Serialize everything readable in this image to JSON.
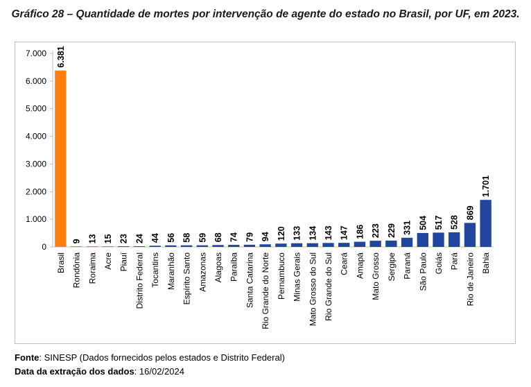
{
  "title": "Gráfico 28 – Quantidade de mortes por intervenção de agente do estado no Brasil, por UF, em 2023.",
  "footer": {
    "source_label": "Fonte",
    "source_text": ": SINESP (Dados fornecidos pelos estados e Distrito Federal)",
    "date_label": "Data da extração dos dados",
    "date_text": ": 16/02/2024"
  },
  "colors": {
    "highlight": "#FF7F0E",
    "bars": "#2246A0",
    "axis": "#bfbfbf"
  },
  "chart_data": {
    "type": "bar",
    "categories": [
      "Brasil",
      "Rondônia",
      "Roraima",
      "Acre",
      "Piauí",
      "Distrito Federal",
      "Tocantins",
      "Maranhão",
      "Espírito Santo",
      "Amazonas",
      "Alagoas",
      "Paraíba",
      "Santa Catarina",
      "Rio Grande do Norte",
      "Pernambuco",
      "Minas Gerais",
      "Mato Grosso do Sul",
      "Rio Grande do Sul",
      "Ceará",
      "Amapá",
      "Mato Grosso",
      "Sergipe",
      "Paraná",
      "São Paulo",
      "Goiás",
      "Pará",
      "Rio de Janeiro",
      "Bahia"
    ],
    "values": [
      6381,
      9,
      13,
      15,
      23,
      24,
      44,
      56,
      58,
      59,
      68,
      74,
      79,
      94,
      120,
      133,
      134,
      143,
      147,
      186,
      223,
      229,
      331,
      504,
      517,
      528,
      869,
      1701
    ],
    "value_labels": [
      "6.381",
      "9",
      "13",
      "15",
      "23",
      "24",
      "44",
      "56",
      "58",
      "59",
      "68",
      "74",
      "79",
      "94",
      "120",
      "133",
      "134",
      "143",
      "147",
      "186",
      "223",
      "229",
      "331",
      "504",
      "517",
      "528",
      "869",
      "1.701"
    ],
    "yticks": [
      0,
      1000,
      2000,
      3000,
      4000,
      5000,
      6000,
      7000
    ],
    "ytick_labels": [
      "0",
      "1.000",
      "2.000",
      "3.000",
      "4.000",
      "5.000",
      "6.000",
      "7.000"
    ],
    "ylim": [
      0,
      7000
    ],
    "highlight_category": "Brasil",
    "grid": false,
    "legend": false
  }
}
